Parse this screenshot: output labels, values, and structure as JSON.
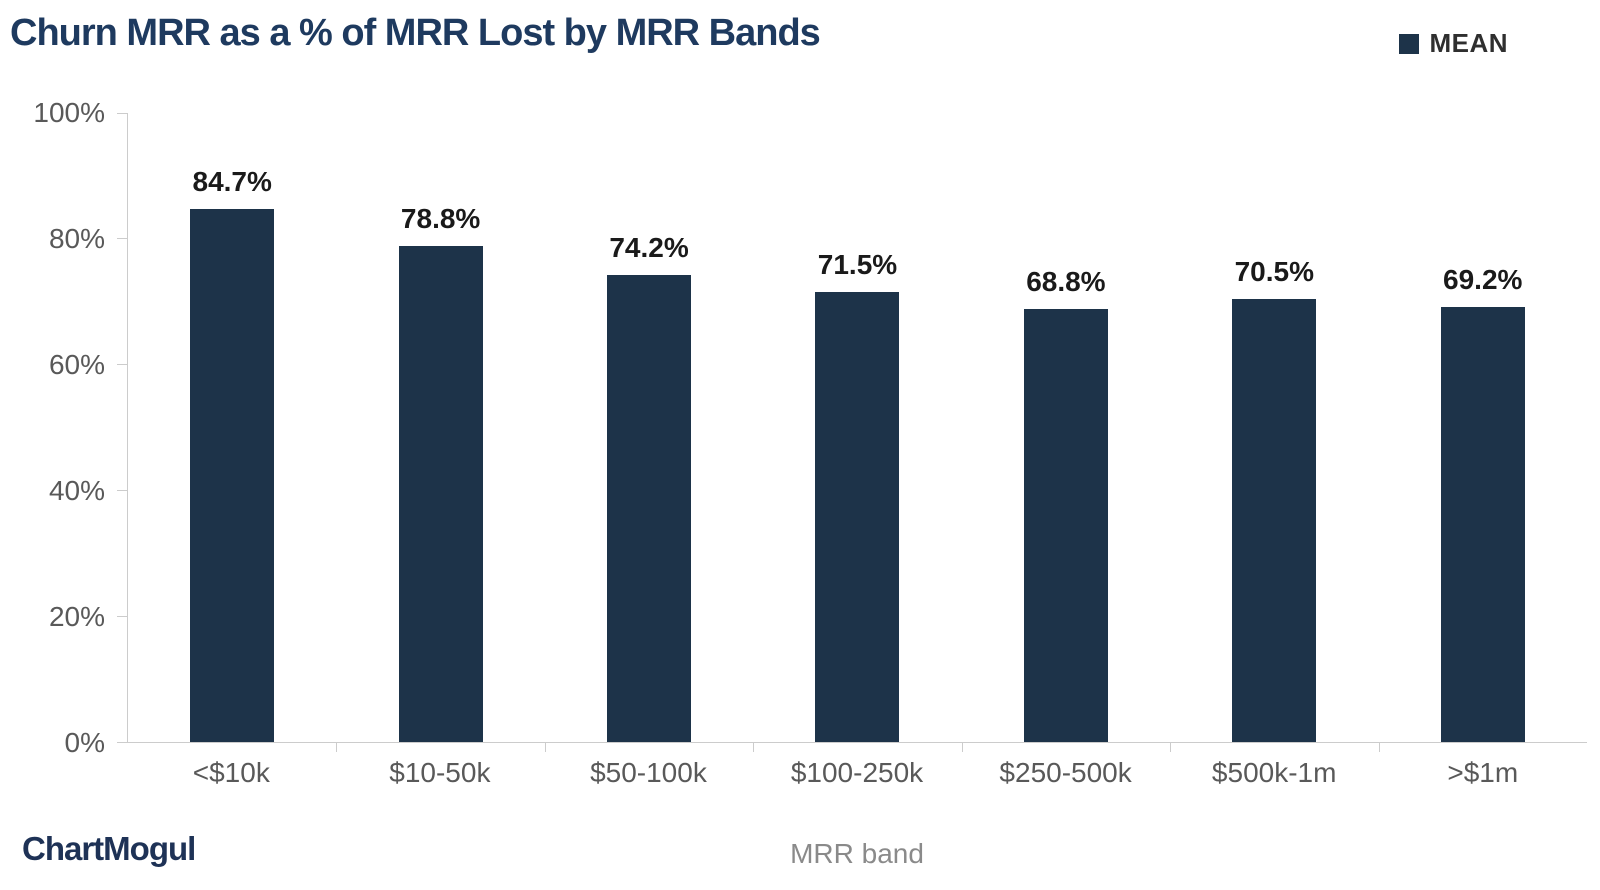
{
  "header": {
    "title": "Churn MRR as a % of MRR Lost by MRR Bands",
    "legend": {
      "label": "MEAN"
    }
  },
  "chart_data": {
    "type": "bar",
    "title": "Churn MRR as a % of MRR Lost by MRR Bands",
    "categories": [
      "<$10k",
      "$10-50k",
      "$50-100k",
      "$100-250k",
      "$250-500k",
      "$500k-1m",
      ">$1m"
    ],
    "series": [
      {
        "name": "MEAN",
        "values": [
          84.7,
          78.8,
          74.2,
          71.5,
          68.8,
          70.5,
          69.2
        ]
      }
    ],
    "value_labels": [
      "84.7%",
      "78.8%",
      "74.2%",
      "71.5%",
      "68.8%",
      "70.5%",
      "69.2%"
    ],
    "xlabel": "MRR band",
    "ylabel": "",
    "ylim": [
      0,
      100
    ],
    "yticks": [
      0,
      20,
      40,
      60,
      80,
      100
    ],
    "ytick_labels": [
      "0%",
      "20%",
      "40%",
      "60%",
      "80%",
      "100%"
    ],
    "grid": false,
    "legend_position": "top-right",
    "bar_color": "#1d3349"
  },
  "colors": {
    "bar": "#1d3349",
    "title": "#1e3a5f",
    "axis_line": "#cccccc",
    "tick_label": "#595959",
    "value_label": "#1a1a1a",
    "brand": "#1e3256"
  },
  "footer": {
    "brand": "ChartMogul"
  }
}
